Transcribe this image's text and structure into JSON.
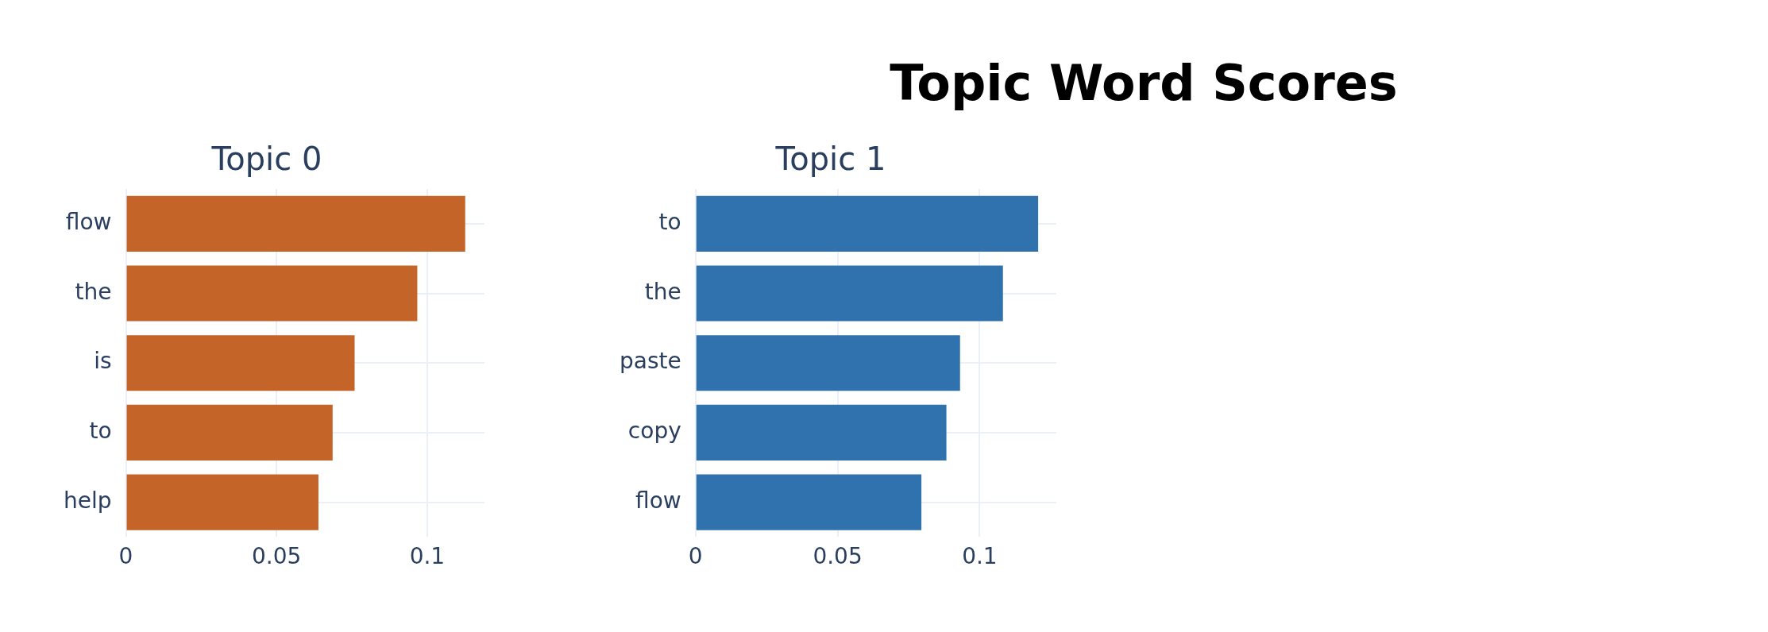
{
  "chart_data": [
    {
      "type": "other",
      "title": "Topic Word Scores"
    },
    {
      "type": "bar",
      "orientation": "horizontal",
      "title": "Topic 0",
      "categories": [
        "flow",
        "the",
        "is",
        "to",
        "help"
      ],
      "values": [
        0.1126,
        0.0967,
        0.0759,
        0.0686,
        0.0639
      ],
      "color": "#c46428",
      "xlim": [
        0,
        0.119
      ],
      "xticks": [
        0,
        0.05,
        0.1
      ],
      "grid": true,
      "legend": false
    },
    {
      "type": "bar",
      "orientation": "horizontal",
      "title": "Topic 1",
      "categories": [
        "to",
        "the",
        "paste",
        "copy",
        "flow"
      ],
      "values": [
        0.1206,
        0.1082,
        0.0931,
        0.0883,
        0.0795
      ],
      "color": "#2f72ad",
      "xlim": [
        0,
        0.127
      ],
      "xticks": [
        0,
        0.05,
        0.1
      ],
      "grid": true,
      "legend": false
    }
  ]
}
